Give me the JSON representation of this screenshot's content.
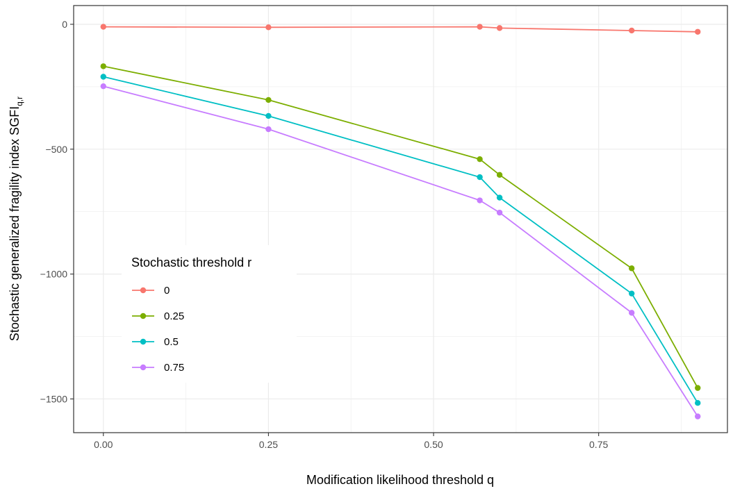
{
  "chart_data": {
    "type": "line",
    "title": "",
    "xlabel": "Modification likelihood threshold q",
    "ylabel": "Stochastic generalized fragility index SGFI",
    "ylabel_subscript": "q,r",
    "xlim": [
      -0.045,
      0.945
    ],
    "ylim": [
      -1635,
      75
    ],
    "x_ticks": [
      0.0,
      0.25,
      0.5,
      0.75
    ],
    "x_tick_labels": [
      "0.00",
      "0.25",
      "0.50",
      "0.75"
    ],
    "y_ticks": [
      0,
      -500,
      -1000,
      -1500
    ],
    "y_tick_labels": [
      "0",
      "−500",
      "−1000",
      "−1500"
    ],
    "grid": true,
    "legend": {
      "title": "Stochastic threshold r",
      "position": "bottom-left inside"
    },
    "x": [
      0.0,
      0.25,
      0.57,
      0.6,
      0.8,
      0.9
    ],
    "series": [
      {
        "name": "0",
        "color": "#F8766D",
        "values": [
          -10,
          -12,
          -10,
          -15,
          -25,
          -30
        ]
      },
      {
        "name": "0.25",
        "color": "#7CAE00",
        "values": [
          -168,
          -303,
          -540,
          -603,
          -977,
          -1456
        ]
      },
      {
        "name": "0.5",
        "color": "#00BFC4",
        "values": [
          -210,
          -367,
          -612,
          -694,
          -1078,
          -1516
        ]
      },
      {
        "name": "0.75",
        "color": "#C77CFF",
        "values": [
          -248,
          -420,
          -705,
          -754,
          -1155,
          -1570
        ]
      }
    ]
  }
}
